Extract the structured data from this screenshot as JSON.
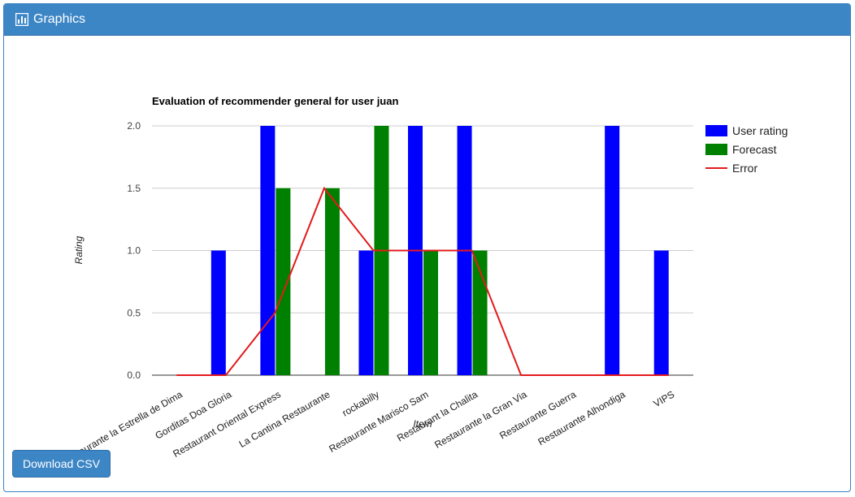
{
  "panel": {
    "title": "Graphics",
    "icon": "bar-chart-icon"
  },
  "download_button": {
    "label": "Download CSV"
  },
  "chart_data": {
    "type": "bar",
    "title": "Evaluation of recommender general for user juan",
    "xlabel": "Item",
    "ylabel": "Rating",
    "ylim": [
      0,
      2
    ],
    "yticks": [
      "0.0",
      "0.5",
      "1.0",
      "1.5",
      "2.0"
    ],
    "grid": true,
    "legend_position": "right",
    "categories": [
      "Restaurante la Estrella de Dima",
      "Gorditas Doa Gloria",
      "Restaurant Oriental Express",
      "La Cantina Restaurante",
      "rockabilly",
      "Restaurante Marisco Sam",
      "Restaurant la Chalita",
      "Restaurante la Gran Via",
      "Restaurante Guerra",
      "Restaurante Alhondiga",
      "VIPS"
    ],
    "series": [
      {
        "name": "User rating",
        "kind": "bar",
        "color": "#0000ff",
        "values": [
          0,
          1,
          2,
          0,
          1,
          2,
          2,
          0,
          0,
          2,
          1
        ]
      },
      {
        "name": "Forecast",
        "kind": "bar",
        "color": "#008000",
        "values": [
          0,
          0,
          1.5,
          1.5,
          2,
          1,
          1,
          0,
          0,
          0,
          0
        ]
      },
      {
        "name": "Error",
        "kind": "line",
        "color": "#e31a1c",
        "values": [
          0,
          0,
          0.5,
          1.5,
          1,
          1,
          1,
          0,
          0,
          0,
          0
        ]
      }
    ]
  }
}
